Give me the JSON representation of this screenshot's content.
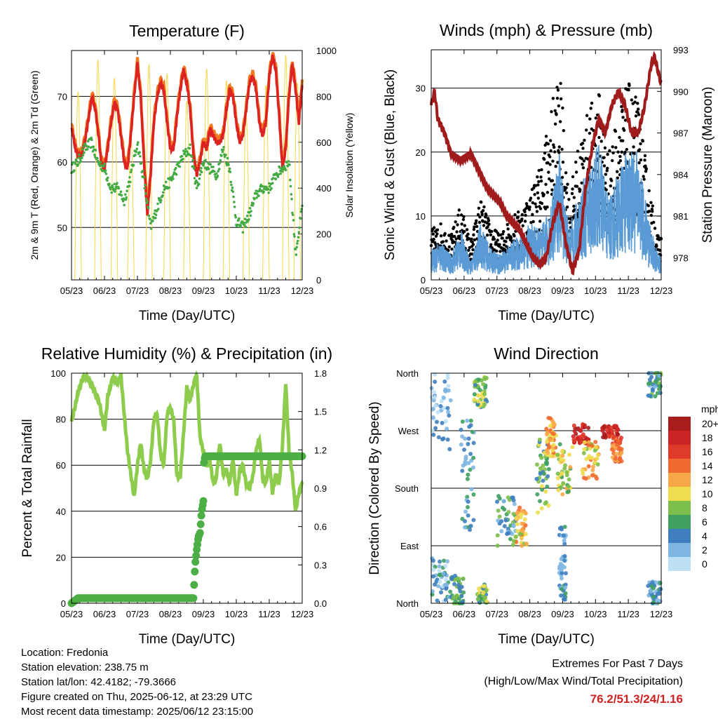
{
  "chart_data": [
    {
      "type": "line",
      "title": "Temperature (F)",
      "xlabel": "Time (Day/UTC)",
      "ylabel": "2m & 9m T (Red, Orange) & 2m Td (Green)",
      "y2label": "Solar Insolation (Yellow)",
      "x_ticks": [
        "05/23",
        "06/23",
        "07/23",
        "08/23",
        "09/23",
        "10/23",
        "11/23",
        "12/23"
      ],
      "ylim": [
        42,
        77
      ],
      "y_ticks": [
        50,
        60,
        70
      ],
      "y2lim": [
        0,
        1000
      ],
      "y2_ticks": [
        0,
        200,
        400,
        600,
        800,
        1000
      ],
      "grid": true,
      "series": [
        {
          "name": "2m T",
          "color": "#dd2222",
          "x": [
            0,
            0.05,
            0.12,
            0.2,
            0.3,
            0.4,
            0.5,
            0.62,
            0.72,
            0.82,
            0.9,
            1.0,
            1.1,
            1.2,
            1.3,
            1.4,
            1.5,
            1.6,
            1.7,
            1.8,
            1.9,
            2.0,
            2.1,
            2.2,
            2.3,
            2.4,
            2.5,
            2.6,
            2.7,
            2.8,
            2.9,
            3.0,
            3.1,
            3.2,
            3.3,
            3.4,
            3.5,
            3.6,
            3.7,
            3.8,
            3.9,
            4.0,
            4.1,
            4.2,
            4.3,
            4.4,
            4.5,
            4.6,
            4.7,
            4.8,
            4.9,
            5.0,
            5.1,
            5.2,
            5.3,
            5.4,
            5.5,
            5.6,
            5.7,
            5.8,
            5.9,
            6.0,
            6.1,
            6.2,
            6.3,
            6.4,
            6.5,
            6.6,
            6.7,
            6.8,
            6.9,
            7.0
          ],
          "values": [
            65,
            64,
            62,
            61,
            61,
            63,
            66,
            70,
            68,
            64,
            60,
            59,
            62,
            66,
            69,
            68,
            64,
            60,
            59,
            64,
            70,
            75,
            70,
            60,
            52,
            58,
            66,
            70,
            72,
            71,
            66,
            62,
            62,
            67,
            71,
            74,
            72,
            68,
            61,
            58,
            60,
            63,
            62,
            65,
            64,
            63,
            63,
            64,
            68,
            71,
            70,
            66,
            63,
            64,
            68,
            72,
            73,
            71,
            66,
            64,
            66,
            73,
            76,
            74,
            67,
            59,
            62,
            70,
            75,
            71,
            66,
            72
          ]
        },
        {
          "name": "9m T",
          "color": "#f07a22",
          "x": [
            0.9,
            1.5,
            2.2,
            2.4,
            3.2,
            4.3,
            5.5,
            6.2,
            6.5,
            6.9
          ],
          "values": [
            61,
            66,
            64,
            57,
            69,
            63,
            71,
            74,
            66,
            70
          ]
        },
        {
          "name": "2m Td",
          "color": "#44aa44",
          "x": [
            0,
            0.2,
            0.4,
            0.6,
            0.8,
            1.0,
            1.2,
            1.4,
            1.6,
            1.8,
            2.0,
            2.2,
            2.4,
            2.6,
            2.8,
            3.0,
            3.2,
            3.4,
            3.6,
            3.8,
            4.0,
            4.2,
            4.4,
            4.6,
            4.8,
            5.0,
            5.2,
            5.4,
            5.6,
            5.8,
            6.0,
            6.2,
            6.4,
            6.6,
            6.8,
            7.0
          ],
          "values": [
            59,
            60,
            62,
            63,
            60,
            59,
            56,
            56,
            54,
            58,
            63,
            57,
            50,
            53,
            56,
            57,
            59,
            61,
            62,
            56,
            60,
            59,
            58,
            62,
            59,
            51,
            50,
            52,
            55,
            56,
            56,
            58,
            59,
            60,
            46,
            53
          ]
        },
        {
          "name": "Solar Insolation",
          "color": "#f5d84a",
          "axis": "y2",
          "peaks_x": [
            0.2,
            0.8,
            1.3,
            1.8,
            2.35,
            2.9,
            3.5,
            4.1,
            4.7,
            5.3,
            5.9,
            6.5,
            6.85
          ],
          "peaks": [
            820,
            960,
            880,
            640,
            940,
            900,
            780,
            920,
            870,
            720,
            850,
            980,
            860
          ]
        }
      ]
    },
    {
      "type": "scatter",
      "title": "Winds (mph) & Pressure (mb)",
      "xlabel": "Time (Day/UTC)",
      "ylabel": "Sonic Wind & Gust (Blue, Black)",
      "y2label": "Station Pressure (Maroon)",
      "x_ticks": [
        "05/23",
        "06/23",
        "07/23",
        "08/23",
        "09/23",
        "10/23",
        "11/23",
        "12/23"
      ],
      "ylim": [
        0,
        36
      ],
      "y_ticks": [
        0,
        10,
        20,
        30
      ],
      "y2lim": [
        976.4,
        993
      ],
      "y2_ticks": [
        978,
        981,
        984,
        987,
        990,
        993
      ],
      "grid": true,
      "series": [
        {
          "name": "Sonic Wind",
          "color": "#5b9bd5",
          "x": [
            0,
            0.3,
            0.6,
            0.9,
            1.2,
            1.5,
            1.8,
            2.1,
            2.4,
            2.7,
            3.0,
            3.3,
            3.6,
            3.9,
            4.2,
            4.5,
            4.8,
            5.1,
            5.4,
            5.7,
            6.0,
            6.3,
            6.6,
            6.9
          ],
          "values": [
            5,
            6,
            4,
            8,
            3,
            9,
            5,
            4,
            6,
            7,
            9,
            8,
            11,
            20,
            8,
            14,
            18,
            22,
            13,
            17,
            21,
            20,
            10,
            4
          ]
        },
        {
          "name": "Gust",
          "color": "#000000",
          "x": [
            0,
            0.3,
            0.6,
            0.9,
            1.2,
            1.5,
            1.8,
            2.1,
            2.4,
            2.7,
            3.0,
            3.3,
            3.6,
            3.9,
            4.2,
            4.5,
            4.8,
            5.1,
            5.4,
            5.7,
            6.0,
            6.3,
            6.6,
            6.9
          ],
          "values": [
            8,
            9,
            7,
            12,
            6,
            13,
            9,
            7,
            10,
            11,
            14,
            18,
            26,
            34,
            13,
            22,
            27,
            30,
            20,
            27,
            31,
            28,
            16,
            7
          ]
        },
        {
          "name": "Station Pressure",
          "color": "#a01c1c",
          "axis": "y2",
          "x": [
            0,
            0.1,
            0.2,
            0.4,
            0.6,
            0.9,
            1.2,
            1.5,
            1.7,
            1.9,
            2.1,
            2.3,
            2.5,
            2.7,
            2.9,
            3.1,
            3.3,
            3.5,
            3.7,
            3.9,
            4.1,
            4.3,
            4.5,
            4.7,
            4.9,
            5.1,
            5.3,
            5.5,
            5.7,
            5.9,
            6.1,
            6.3,
            6.5,
            6.7,
            6.8,
            6.9,
            7.0
          ],
          "values": [
            989,
            990,
            988,
            987,
            985.5,
            985,
            985.5,
            984,
            983,
            982.5,
            982,
            981,
            980.5,
            980,
            979,
            978,
            977.5,
            978,
            980.5,
            982,
            979,
            977,
            978.5,
            983,
            986,
            988,
            987,
            989,
            990,
            989,
            987,
            987,
            989,
            992,
            992.5,
            991.5,
            990.5
          ]
        }
      ]
    },
    {
      "type": "line",
      "title": "Relative Humidity (%) & Precipitation (in)",
      "xlabel": "Time (Day/UTC)",
      "ylabel": "Percent & Total Rainfall",
      "x_ticks": [
        "05/23",
        "06/23",
        "07/23",
        "08/23",
        "09/23",
        "10/23",
        "11/23",
        "12/23"
      ],
      "ylim": [
        0,
        100
      ],
      "y_ticks": [
        0,
        20,
        40,
        60,
        80,
        100
      ],
      "y2lim": [
        0,
        1.8
      ],
      "y2_ticks": [
        "0.0",
        "0.3",
        "0.6",
        "0.9",
        "1.2",
        "1.5",
        "1.8"
      ],
      "grid": true,
      "series": [
        {
          "name": "Relative Humidity",
          "color": "#8ecc4e",
          "x": [
            0,
            0.1,
            0.2,
            0.35,
            0.5,
            0.7,
            0.85,
            1.0,
            1.1,
            1.25,
            1.4,
            1.5,
            1.6,
            1.7,
            1.8,
            1.9,
            2.0,
            2.1,
            2.2,
            2.3,
            2.4,
            2.5,
            2.6,
            2.7,
            2.8,
            2.9,
            3.0,
            3.1,
            3.2,
            3.3,
            3.4,
            3.5,
            3.6,
            3.7,
            3.8,
            3.9,
            4.0,
            4.1,
            4.2,
            4.3,
            4.4,
            4.5,
            4.6,
            4.7,
            4.8,
            4.9,
            5.0,
            5.1,
            5.2,
            5.3,
            5.4,
            5.5,
            5.6,
            5.7,
            5.8,
            5.9,
            6.0,
            6.1,
            6.2,
            6.3,
            6.4,
            6.5,
            6.6,
            6.7,
            6.8,
            6.9,
            7.0
          ],
          "values": [
            79,
            85,
            92,
            98,
            98,
            92,
            87,
            75,
            90,
            98,
            96,
            99,
            82,
            66,
            56,
            46,
            60,
            70,
            58,
            54,
            62,
            80,
            82,
            65,
            60,
            82,
            85,
            80,
            55,
            55,
            74,
            94,
            88,
            95,
            99,
            72,
            66,
            60,
            62,
            52,
            55,
            70,
            56,
            58,
            52,
            63,
            47,
            57,
            60,
            52,
            50,
            55,
            66,
            72,
            54,
            52,
            62,
            48,
            56,
            52,
            68,
            96,
            66,
            56,
            40,
            48,
            52
          ]
        },
        {
          "name": "Total Rainfall",
          "color": "#4caf45",
          "axis": "y2",
          "x": [
            0,
            0.1,
            0.2,
            3.7,
            3.75,
            3.8,
            3.85,
            3.9,
            3.95,
            4.0,
            4.02,
            4.05,
            7.0
          ],
          "values": [
            0,
            0.02,
            0.04,
            0.04,
            0.3,
            0.42,
            0.52,
            0.55,
            0.72,
            0.8,
            1.1,
            1.15,
            1.15
          ]
        }
      ]
    },
    {
      "type": "scatter",
      "title": "Wind Direction",
      "xlabel": "Time (Day/UTC)",
      "ylabel": "Direction (Colored By Speed)",
      "x_ticks": [
        "05/23",
        "06/23",
        "07/23",
        "08/23",
        "09/23",
        "10/23",
        "11/23",
        "12/23"
      ],
      "y_ticks": [
        "North",
        "East",
        "South",
        "West",
        "North"
      ],
      "ylim": [
        0,
        360
      ],
      "grid": true,
      "legend": {
        "title": "mph",
        "labels": [
          "20+",
          "18",
          "16",
          "14",
          "12",
          "10",
          "8",
          "6",
          "4",
          "2",
          "0"
        ],
        "colors": [
          "#a81c1c",
          "#cc2424",
          "#e03a2a",
          "#f06a30",
          "#f8a848",
          "#eedd50",
          "#7cbf4a",
          "#3fa060",
          "#3f7fbf",
          "#7eb6e2",
          "#bde0f5"
        ]
      }
    }
  ],
  "info": {
    "location": "Location: Fredonia",
    "elevation": "Station elevation: 238.75 m",
    "latlon": "Station lat/lon: 42.4182; -79.3666",
    "created": "Figure created on Thu, 2025-06-12, at 23:29 UTC",
    "recent": "Most recent data timestamp: 2025/06/12 23:15:00"
  },
  "extremes": {
    "title": "Extremes For Past 7 Days",
    "subtitle": "(High/Low/Max Wind/Total Precipitation)",
    "values": "76.2/51.3/24/1.16"
  }
}
